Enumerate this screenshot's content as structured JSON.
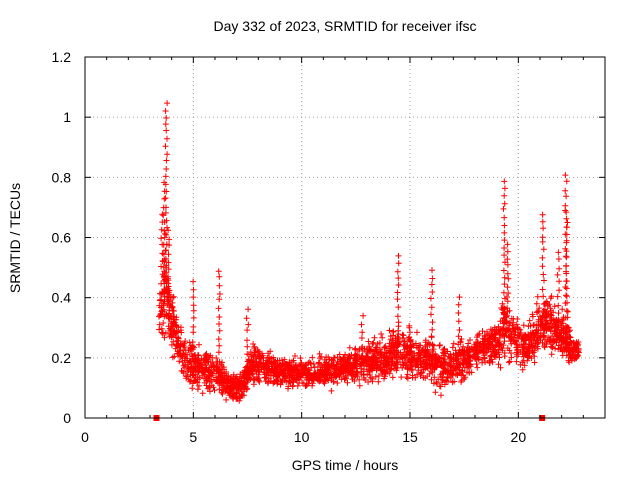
{
  "chart_data": {
    "type": "scatter",
    "title": "Day 332 of 2023, SRMTID for receiver ifsc",
    "xlabel": "GPS time / hours",
    "ylabel": "SRMTID / TECUs",
    "xlim": [
      0,
      24
    ],
    "ylim": [
      0,
      1.2
    ],
    "x_ticks": [
      0,
      5,
      10,
      15,
      20
    ],
    "x_tick_labels": [
      "0",
      "5",
      "10",
      "15",
      "20"
    ],
    "y_ticks": [
      0,
      0.2,
      0.4,
      0.6,
      0.8,
      1.0,
      1.2
    ],
    "y_tick_labels": [
      "0",
      "0.2",
      "0.4",
      "0.6",
      "0.8",
      "1",
      "1.2"
    ],
    "grid": true,
    "marker": "+",
    "color": "#ff0000",
    "axis_markers": [
      3.3,
      21.1
    ],
    "envelope": {
      "x": [
        3.4,
        3.6,
        3.7,
        3.9,
        4.2,
        4.6,
        5.0,
        5.5,
        6.0,
        6.4,
        6.8,
        7.3,
        7.8,
        8.5,
        9.5,
        10.5,
        11.5,
        12.5,
        13.5,
        14.0,
        14.5,
        15.0,
        15.5,
        16.0,
        16.5,
        17.0,
        17.5,
        18.0,
        18.5,
        19.0,
        19.4,
        19.8,
        20.2,
        20.6,
        21.0,
        21.4,
        21.8,
        22.2,
        22.5,
        22.8
      ],
      "base": [
        0.34,
        0.38,
        0.46,
        0.34,
        0.27,
        0.2,
        0.16,
        0.16,
        0.15,
        0.13,
        0.1,
        0.11,
        0.19,
        0.16,
        0.15,
        0.15,
        0.16,
        0.18,
        0.19,
        0.2,
        0.22,
        0.21,
        0.2,
        0.2,
        0.17,
        0.18,
        0.2,
        0.22,
        0.24,
        0.25,
        0.3,
        0.27,
        0.24,
        0.26,
        0.3,
        0.32,
        0.28,
        0.26,
        0.23,
        0.22
      ],
      "spread": [
        0.1,
        0.14,
        0.18,
        0.12,
        0.1,
        0.08,
        0.07,
        0.07,
        0.07,
        0.06,
        0.05,
        0.05,
        0.07,
        0.05,
        0.05,
        0.05,
        0.05,
        0.06,
        0.07,
        0.08,
        0.09,
        0.08,
        0.08,
        0.09,
        0.08,
        0.08,
        0.08,
        0.07,
        0.07,
        0.08,
        0.12,
        0.09,
        0.07,
        0.08,
        0.09,
        0.1,
        0.08,
        0.07,
        0.06,
        0.05
      ]
    },
    "spikes": [
      {
        "x": 3.55,
        "ymax": 0.68
      },
      {
        "x": 3.65,
        "ymax": 0.78
      },
      {
        "x": 3.75,
        "ymax": 1.05
      },
      {
        "x": 3.85,
        "ymax": 0.62
      },
      {
        "x": 4.05,
        "ymax": 0.4
      },
      {
        "x": 5.0,
        "ymax": 0.45
      },
      {
        "x": 6.2,
        "ymax": 0.49
      },
      {
        "x": 7.5,
        "ymax": 0.36
      },
      {
        "x": 12.8,
        "ymax": 0.34
      },
      {
        "x": 14.45,
        "ymax": 0.54
      },
      {
        "x": 15.0,
        "ymax": 0.3
      },
      {
        "x": 16.0,
        "ymax": 0.49
      },
      {
        "x": 17.25,
        "ymax": 0.4
      },
      {
        "x": 19.35,
        "ymax": 0.79
      },
      {
        "x": 19.5,
        "ymax": 0.58
      },
      {
        "x": 21.15,
        "ymax": 0.68
      },
      {
        "x": 21.85,
        "ymax": 0.55
      },
      {
        "x": 22.2,
        "ymax": 0.81
      },
      {
        "x": 22.25,
        "ymax": 0.68
      }
    ]
  }
}
